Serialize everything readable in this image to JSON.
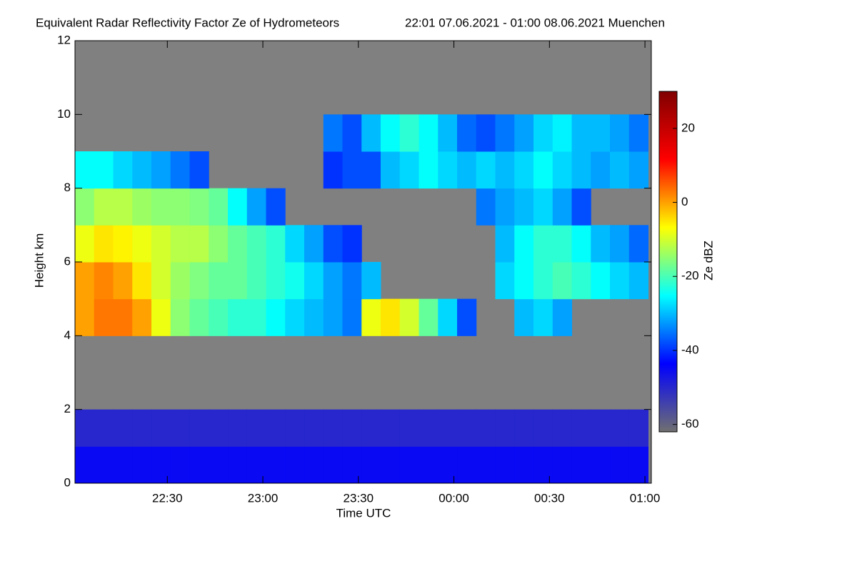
{
  "chart_data": {
    "type": "heatmap",
    "title": "Equivalent Radar Reflectivity Factor Ze of Hydrometeors",
    "subtitle": "22:01 07.06.2021 - 01:00 08.06.2021 Muenchen",
    "xlabel": "Time UTC",
    "ylabel": "Height km",
    "colorbar_label": "Ze dBZ",
    "background": "#808080",
    "xlim": [
      1,
      182
    ],
    "xticks": [
      {
        "value": 30,
        "label": "22:30"
      },
      {
        "value": 60,
        "label": "23:00"
      },
      {
        "value": 90,
        "label": "23:30"
      },
      {
        "value": 120,
        "label": "00:00"
      },
      {
        "value": 150,
        "label": "00:30"
      },
      {
        "value": 180,
        "label": "01:00"
      }
    ],
    "ylim": [
      0,
      12
    ],
    "yticks": [
      0,
      2,
      4,
      6,
      8,
      10,
      12
    ],
    "zlim": [
      -62,
      30
    ],
    "zticks": [
      -60,
      -40,
      -20,
      0,
      20
    ],
    "colorscale": [
      "#707070",
      "#0000ff",
      "#00ffff",
      "#ffff00",
      "#ff0000",
      "#800000"
    ],
    "xbins": [
      1,
      7,
      13,
      19,
      25,
      31,
      37,
      43,
      49,
      55,
      61,
      67,
      73,
      79,
      85,
      91,
      97,
      103,
      109,
      115,
      121,
      127,
      133,
      139,
      145,
      151,
      157,
      163,
      169,
      175,
      181
    ],
    "ybins": [
      0,
      1,
      2,
      3,
      4,
      5,
      6,
      7,
      8,
      9,
      10,
      11,
      12
    ],
    "z": [
      [
        -45,
        -45,
        -45,
        -45,
        -45,
        -45,
        -45,
        -45,
        -45,
        -45,
        -45,
        -45,
        -45,
        -45,
        -45,
        -45,
        -45,
        -45,
        -45,
        -45,
        -45,
        -45,
        -45,
        -45,
        -45,
        -45,
        -45,
        -45,
        -45,
        -45
      ],
      [
        -50,
        -50,
        -50,
        -50,
        -50,
        -50,
        -50,
        -50,
        -50,
        -50,
        -50,
        -50,
        -50,
        -50,
        -50,
        -50,
        -50,
        -50,
        -50,
        -50,
        -50,
        -50,
        -50,
        -50,
        -50,
        -50,
        -50,
        -50,
        -50,
        -50
      ],
      [
        null,
        null,
        null,
        null,
        null,
        null,
        null,
        null,
        null,
        null,
        null,
        null,
        null,
        null,
        null,
        null,
        null,
        null,
        null,
        null,
        null,
        null,
        null,
        null,
        null,
        null,
        null,
        null,
        null,
        null
      ],
      [
        null,
        null,
        null,
        null,
        null,
        null,
        null,
        null,
        null,
        null,
        null,
        null,
        null,
        null,
        null,
        null,
        null,
        null,
        null,
        null,
        null,
        null,
        null,
        null,
        null,
        null,
        null,
        null,
        null,
        null
      ],
      [
        0,
        3,
        3,
        0,
        -8,
        -15,
        -18,
        -20,
        -22,
        -22,
        -25,
        -28,
        -30,
        -32,
        -35,
        -8,
        -5,
        -10,
        -18,
        -28,
        -38,
        null,
        null,
        -30,
        -28,
        -32,
        null,
        null,
        null,
        null
      ],
      [
        0,
        2,
        0,
        -5,
        -10,
        -14,
        -16,
        -18,
        -18,
        -20,
        -22,
        -24,
        -28,
        -32,
        -35,
        -30,
        null,
        null,
        null,
        null,
        null,
        null,
        -28,
        -25,
        -22,
        -20,
        -22,
        -25,
        -28,
        -30
      ],
      [
        -8,
        -5,
        -6,
        -8,
        -10,
        -12,
        -12,
        -15,
        -18,
        -20,
        -22,
        -28,
        -32,
        -38,
        -40,
        null,
        null,
        null,
        null,
        null,
        null,
        null,
        -30,
        -25,
        -22,
        -22,
        -25,
        -30,
        -32,
        -36
      ],
      [
        -15,
        -12,
        -12,
        -14,
        -15,
        -15,
        -16,
        -18,
        -25,
        -32,
        -38,
        null,
        null,
        null,
        null,
        null,
        null,
        null,
        null,
        null,
        null,
        -35,
        -32,
        -30,
        -28,
        -32,
        -38,
        null,
        null,
        null
      ],
      [
        -25,
        -25,
        -28,
        -30,
        -32,
        -35,
        -38,
        null,
        null,
        null,
        null,
        null,
        null,
        -40,
        -38,
        -38,
        -30,
        -28,
        -25,
        -28,
        -30,
        -28,
        -30,
        -28,
        -25,
        -28,
        -30,
        -32,
        -30,
        -32
      ],
      [
        null,
        null,
        null,
        null,
        null,
        null,
        null,
        null,
        null,
        null,
        null,
        null,
        null,
        -35,
        -38,
        -30,
        -25,
        -22,
        -25,
        -30,
        -36,
        -38,
        -35,
        -32,
        -28,
        -26,
        -30,
        -30,
        -32,
        -35
      ],
      [
        null,
        null,
        null,
        null,
        null,
        null,
        null,
        null,
        null,
        null,
        null,
        null,
        null,
        null,
        null,
        null,
        null,
        null,
        null,
        null,
        null,
        null,
        null,
        null,
        null,
        null,
        null,
        null,
        null,
        null
      ],
      [
        null,
        null,
        null,
        null,
        null,
        null,
        null,
        null,
        null,
        null,
        null,
        null,
        null,
        null,
        null,
        null,
        null,
        null,
        null,
        null,
        null,
        null,
        null,
        null,
        null,
        null,
        null,
        null,
        null,
        null
      ]
    ]
  }
}
